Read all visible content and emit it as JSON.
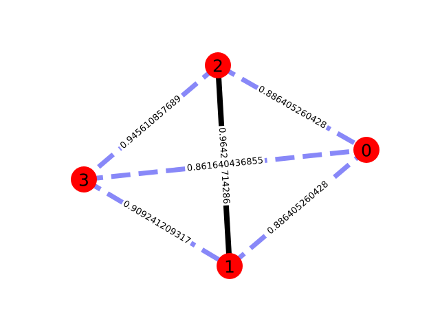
{
  "colors": {
    "node": "#ff0000",
    "solid_edge": "#000000",
    "dashed_edge": "#8888f8",
    "background": "#ffffff"
  },
  "graph": {
    "nodes": [
      {
        "id": "0",
        "label": "0"
      },
      {
        "id": "1",
        "label": "1"
      },
      {
        "id": "2",
        "label": "2"
      },
      {
        "id": "3",
        "label": "3"
      }
    ],
    "edges": [
      {
        "source": "2",
        "target": "1",
        "label": "0.964285714286",
        "style": "solid"
      },
      {
        "source": "2",
        "target": "0",
        "label": "0.886405260428",
        "style": "dashed"
      },
      {
        "source": "2",
        "target": "3",
        "label": "0.945610857689",
        "style": "dashed"
      },
      {
        "source": "3",
        "target": "0",
        "label": "0.861640436855",
        "style": "dashed"
      },
      {
        "source": "3",
        "target": "1",
        "label": "0.909241209317",
        "style": "dashed"
      },
      {
        "source": "1",
        "target": "0",
        "label": "0.886405260428",
        "style": "dashed"
      }
    ]
  }
}
